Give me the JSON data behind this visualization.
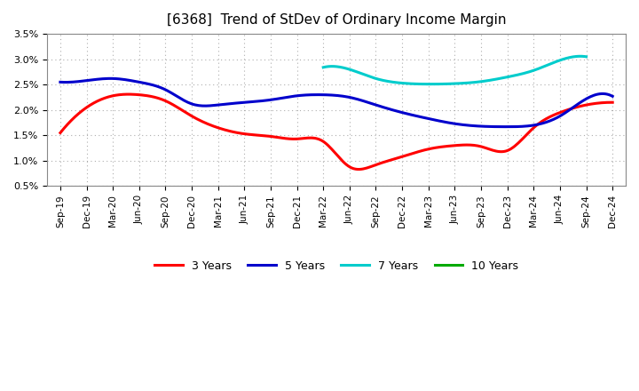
{
  "title": "[6368]  Trend of StDev of Ordinary Income Margin",
  "ylim": [
    0.005,
    0.035
  ],
  "yticks": [
    0.005,
    0.01,
    0.015,
    0.02,
    0.025,
    0.03,
    0.035
  ],
  "ytick_labels": [
    "0.5%",
    "1.0%",
    "1.5%",
    "2.0%",
    "2.5%",
    "3.0%",
    "3.5%"
  ],
  "background_color": "#ffffff",
  "plot_bg_color": "#ffffff",
  "grid_color": "#999999",
  "x_labels": [
    "Sep-19",
    "Dec-19",
    "Mar-20",
    "Jun-20",
    "Sep-20",
    "Dec-20",
    "Mar-21",
    "Jun-21",
    "Sep-21",
    "Dec-21",
    "Mar-22",
    "Jun-22",
    "Sep-22",
    "Dec-22",
    "Mar-23",
    "Jun-23",
    "Sep-23",
    "Dec-23",
    "Mar-24",
    "Jun-24",
    "Sep-24",
    "Dec-24"
  ],
  "series_3y": [
    0.0155,
    0.0205,
    0.0228,
    0.023,
    0.0218,
    0.0188,
    0.0165,
    0.0153,
    0.0148,
    0.0143,
    0.0138,
    0.0088,
    0.0092,
    0.0108,
    0.0123,
    0.013,
    0.0128,
    0.012,
    0.0165,
    0.0195,
    0.021,
    0.0215
  ],
  "series_5y": [
    0.0255,
    0.0258,
    0.0262,
    0.0255,
    0.024,
    0.0212,
    0.021,
    0.0215,
    0.022,
    0.0228,
    0.023,
    0.0225,
    0.021,
    0.0195,
    0.0183,
    0.0173,
    0.0168,
    0.0167,
    0.017,
    0.0188,
    0.0222,
    0.0227
  ],
  "series_7y": [
    null,
    null,
    null,
    null,
    null,
    null,
    null,
    null,
    null,
    null,
    0.0284,
    0.028,
    0.0262,
    0.0253,
    0.0251,
    0.0252,
    0.0256,
    0.0265,
    0.0278,
    0.0298,
    0.0305,
    null
  ],
  "series_10y": [],
  "color_3y": "#ff0000",
  "color_5y": "#0000cc",
  "color_7y": "#00cccc",
  "color_10y": "#00aa00",
  "line_width": 2.2,
  "legend_labels": [
    "3 Years",
    "5 Years",
    "7 Years",
    "10 Years"
  ]
}
